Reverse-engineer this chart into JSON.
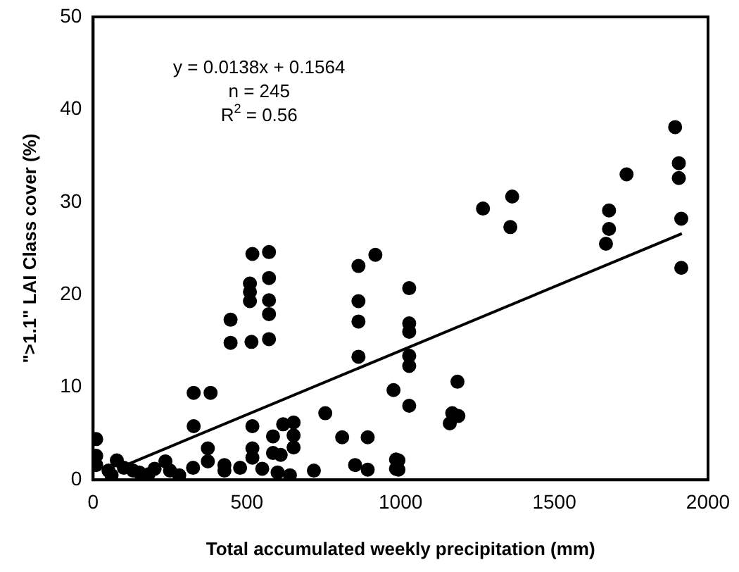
{
  "chart_data": {
    "type": "scatter",
    "xlabel": "Total accumulated weekly precipitation (mm)",
    "ylabel": "\">1.1\" LAI Class cover (%)",
    "annotations": [
      "y = 0.0138x + 0.1564",
      "n = 245",
      "R$^{2}$ = 0.56"
    ],
    "xlim": [
      0,
      2000
    ],
    "xticks": [
      0,
      500,
      1000,
      1500,
      2000
    ],
    "ylim": [
      0,
      50
    ],
    "yticks": [
      0,
      10,
      20,
      30,
      40,
      50
    ],
    "grid": false,
    "legend": false,
    "marker": "circle",
    "series": [
      {
        "color": "#000000",
        "x": [
          518,
          572,
          510,
          510,
          510,
          572,
          572,
          572,
          447,
          447,
          515,
          572,
          863,
          918,
          863,
          863,
          863,
          1028,
          1028,
          1028,
          1028,
          1028,
          1028,
          977,
          327,
          382,
          327,
          373,
          373,
          518,
          518,
          518,
          618,
          652,
          652,
          652,
          585,
          585,
          610,
          755,
          810,
          893,
          852,
          893,
          985,
          985,
          718,
          478,
          427,
          427,
          325,
          235,
          250,
          10,
          10,
          10,
          77,
          50,
          100,
          130,
          150,
          60,
          180,
          200,
          280,
          550,
          600,
          640,
          1893,
          1905,
          1905,
          1913,
          1913,
          1735,
          1678,
          1678,
          1668,
          1268,
          1363,
          1357,
          1185,
          1168,
          1188,
          1160,
          993,
          993
        ],
        "values": [
          24.4,
          24.6,
          21.2,
          20.3,
          19.3,
          21.8,
          19.4,
          17.9,
          17.3,
          14.8,
          14.9,
          15.2,
          23.1,
          24.3,
          19.3,
          17.1,
          13.3,
          20.7,
          16.9,
          16.0,
          13.4,
          12.3,
          8.0,
          9.7,
          9.4,
          9.4,
          5.8,
          3.4,
          2.0,
          5.8,
          3.4,
          2.4,
          6.0,
          6.2,
          4.8,
          3.5,
          4.7,
          2.9,
          2.7,
          7.2,
          4.6,
          4.6,
          1.6,
          1.1,
          2.2,
          1.2,
          1.0,
          1.3,
          1.6,
          1.0,
          1.3,
          2.0,
          1.0,
          4.4,
          2.6,
          1.6,
          2.1,
          1.0,
          1.3,
          1.0,
          0.8,
          0.5,
          0.6,
          1.2,
          0.5,
          1.2,
          0.8,
          0.5,
          38.1,
          34.2,
          32.6,
          28.2,
          22.9,
          33.0,
          29.1,
          27.1,
          25.5,
          29.3,
          30.6,
          27.3,
          10.6,
          7.2,
          6.9,
          6.1,
          2.1,
          1.1
        ]
      },
      {
        "type": "line",
        "color": "#000000",
        "marker": "none",
        "x": [
          85,
          1915
        ],
        "values": [
          1.3,
          26.6
        ]
      }
    ]
  }
}
